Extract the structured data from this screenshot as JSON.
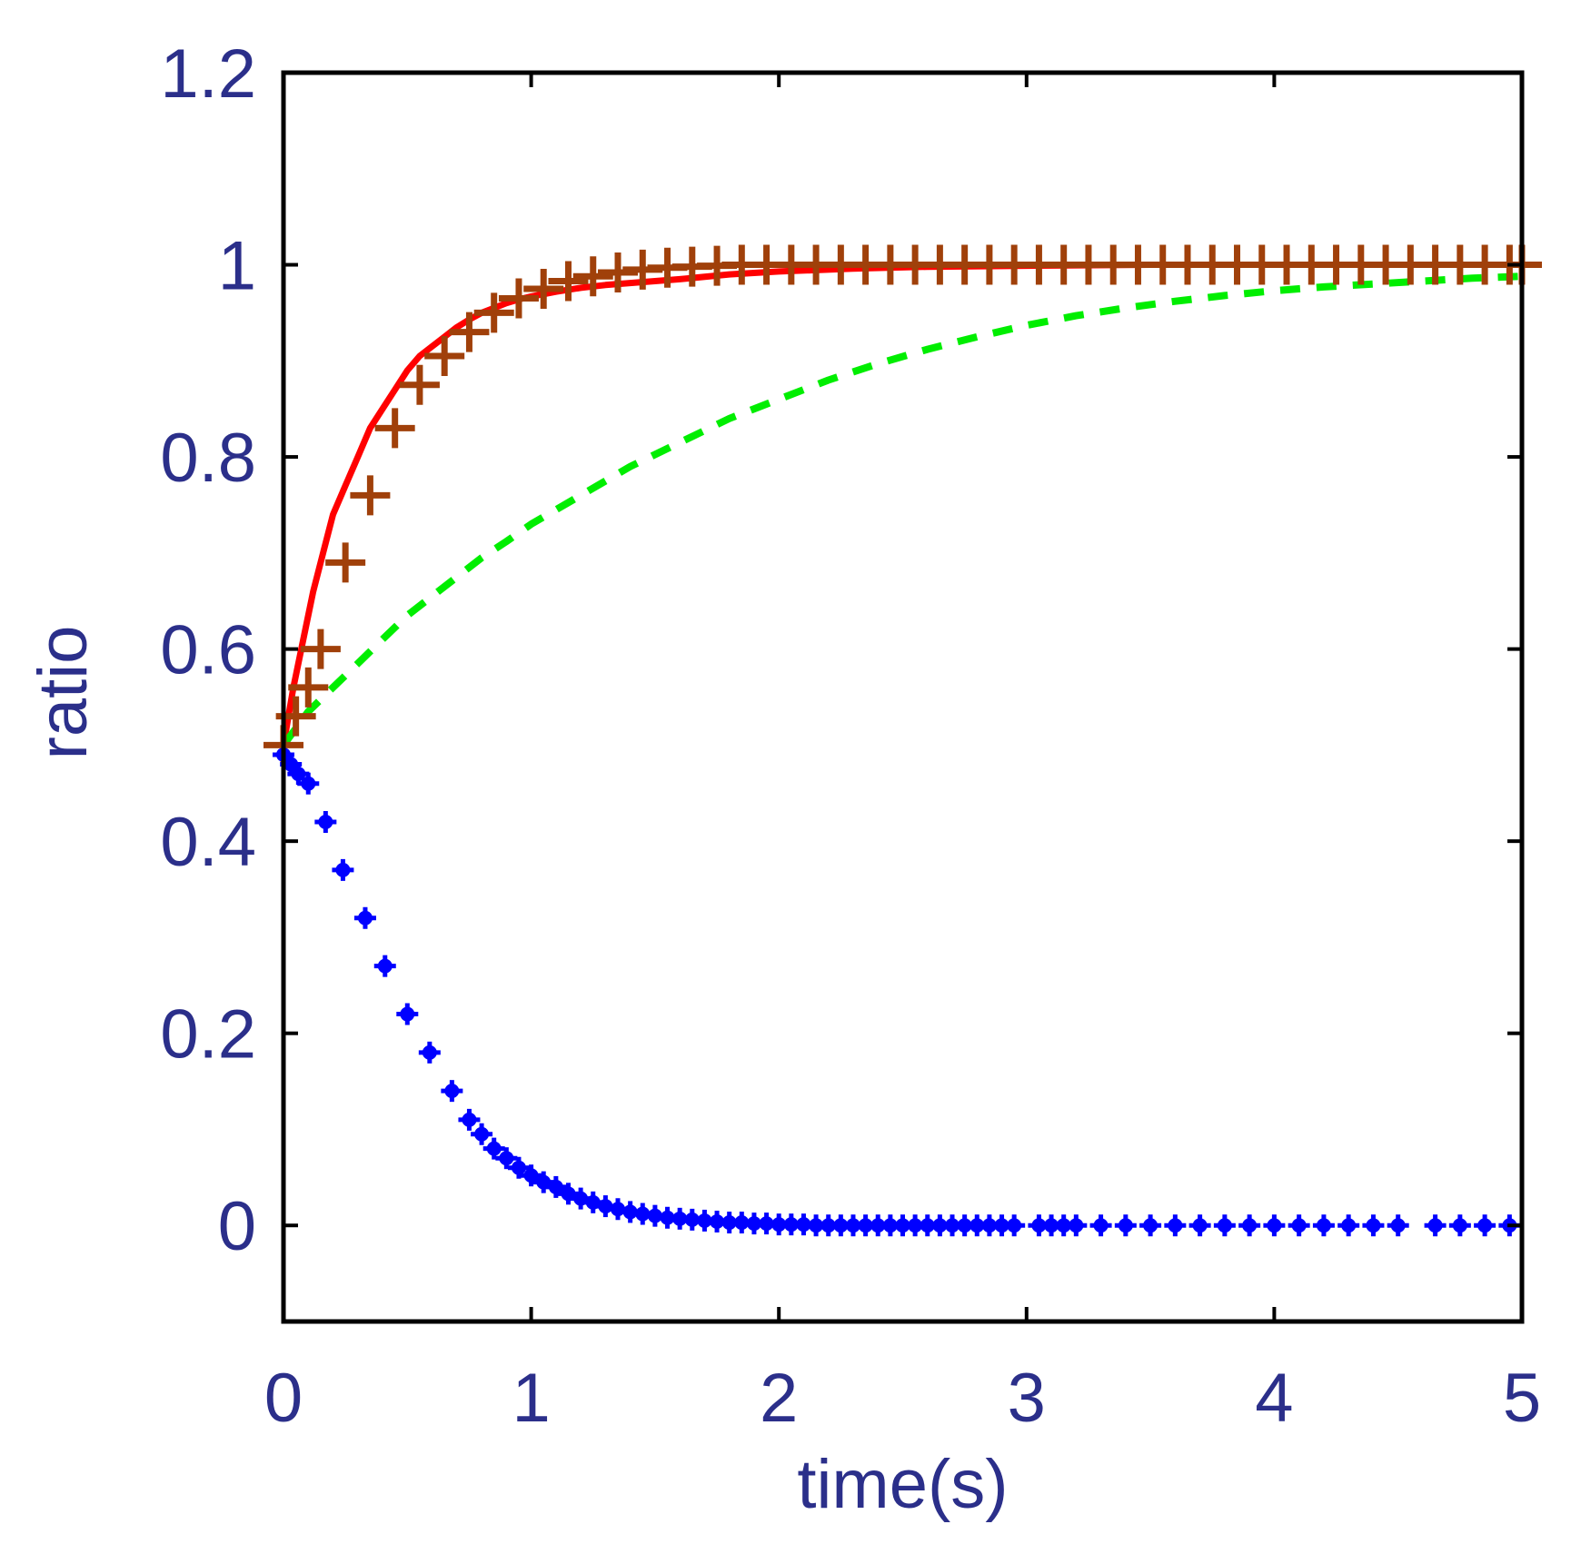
{
  "chart_data": {
    "type": "line",
    "title": "",
    "xlabel": "time(s)",
    "ylabel": "ratio",
    "xlim": [
      0,
      5
    ],
    "ylim": [
      -0.1,
      1.2
    ],
    "x_ticks": [
      0,
      1,
      2,
      3,
      4,
      5
    ],
    "x_tick_labels": [
      "0",
      "1",
      "2",
      "3",
      "4",
      "5"
    ],
    "y_ticks": [
      0,
      0.2,
      0.4,
      0.6,
      0.8,
      1,
      1.2
    ],
    "y_tick_labels": [
      "0",
      "0.2",
      "0.4",
      "0.6",
      "0.8",
      "1",
      "1.2"
    ],
    "grid": false,
    "legend": "none",
    "series": [
      {
        "name": "red-solid",
        "style": "solid",
        "color": "#ff0000",
        "x": [
          0,
          0.04,
          0.08,
          0.12,
          0.16,
          0.2,
          0.25,
          0.3,
          0.35,
          0.4,
          0.45,
          0.5,
          0.55,
          0.6,
          0.65,
          0.7,
          0.75,
          0.8,
          0.85,
          0.9,
          0.95,
          1.0,
          1.1,
          1.2,
          1.3,
          1.4,
          1.5,
          1.6,
          1.8,
          2.0,
          2.3,
          2.6,
          3.0,
          3.5,
          4.0,
          4.5,
          5.0
        ],
        "y": [
          0.5,
          0.56,
          0.61,
          0.66,
          0.7,
          0.74,
          0.77,
          0.8,
          0.83,
          0.85,
          0.87,
          0.89,
          0.905,
          0.915,
          0.925,
          0.935,
          0.943,
          0.95,
          0.955,
          0.96,
          0.964,
          0.967,
          0.972,
          0.976,
          0.979,
          0.981,
          0.983,
          0.985,
          0.99,
          0.993,
          0.996,
          0.998,
          0.999,
          1.0,
          1.0,
          1.0,
          1.0
        ]
      },
      {
        "name": "green-dashed",
        "style": "dashed",
        "color": "#00ee00",
        "x": [
          0,
          0.1,
          0.2,
          0.3,
          0.4,
          0.5,
          0.6,
          0.7,
          0.8,
          0.9,
          1.0,
          1.2,
          1.4,
          1.6,
          1.8,
          2.0,
          2.2,
          2.4,
          2.6,
          2.8,
          3.0,
          3.2,
          3.4,
          3.6,
          3.8,
          4.0,
          4.2,
          4.4,
          4.6,
          4.8,
          5.0
        ],
        "y": [
          0.5,
          0.535,
          0.56,
          0.585,
          0.61,
          0.635,
          0.655,
          0.675,
          0.695,
          0.712,
          0.73,
          0.76,
          0.79,
          0.815,
          0.84,
          0.86,
          0.88,
          0.897,
          0.912,
          0.925,
          0.937,
          0.947,
          0.955,
          0.962,
          0.968,
          0.973,
          0.977,
          0.98,
          0.983,
          0.986,
          0.988
        ]
      },
      {
        "name": "brown-plus",
        "style": "markers-plus",
        "color": "#a0400a",
        "x": [
          0,
          0.05,
          0.1,
          0.15,
          0.25,
          0.35,
          0.45,
          0.55,
          0.65,
          0.75,
          0.85,
          0.95,
          1.05,
          1.15,
          1.25,
          1.35,
          1.45,
          1.55,
          1.65,
          1.75,
          1.85,
          1.95,
          2.05,
          2.15,
          2.25,
          2.35,
          2.45,
          2.55,
          2.65,
          2.75,
          2.85,
          2.95,
          3.05,
          3.15,
          3.25,
          3.35,
          3.45,
          3.55,
          3.65,
          3.75,
          3.85,
          3.95,
          4.05,
          4.15,
          4.25,
          4.35,
          4.45,
          4.55,
          4.65,
          4.75,
          4.85,
          4.95,
          5.0
        ],
        "y": [
          0.5,
          0.53,
          0.56,
          0.6,
          0.69,
          0.76,
          0.83,
          0.875,
          0.905,
          0.93,
          0.95,
          0.965,
          0.975,
          0.983,
          0.988,
          0.992,
          0.995,
          0.997,
          0.998,
          0.999,
          1.0,
          1.0,
          1.0,
          1.0,
          1.0,
          1.0,
          1.0,
          1.0,
          1.0,
          1.0,
          1.0,
          1.0,
          1.0,
          1.0,
          1.0,
          1.0,
          1.0,
          1.0,
          1.0,
          1.0,
          1.0,
          1.0,
          1.0,
          1.0,
          1.0,
          1.0,
          1.0,
          1.0,
          1.0,
          1.0,
          1.0,
          1.0,
          1.0
        ]
      },
      {
        "name": "blue-dots",
        "style": "markers-dot",
        "color": "#0000ff",
        "x": [
          0,
          0.03,
          0.06,
          0.1,
          0.17,
          0.24,
          0.33,
          0.41,
          0.5,
          0.59,
          0.68,
          0.75,
          0.8,
          0.85,
          0.9,
          0.95,
          1.0,
          1.05,
          1.1,
          1.15,
          1.2,
          1.25,
          1.3,
          1.35,
          1.4,
          1.45,
          1.5,
          1.55,
          1.6,
          1.65,
          1.7,
          1.75,
          1.8,
          1.85,
          1.9,
          1.95,
          2.0,
          2.05,
          2.1,
          2.15,
          2.2,
          2.25,
          2.3,
          2.35,
          2.4,
          2.45,
          2.5,
          2.55,
          2.6,
          2.65,
          2.7,
          2.75,
          2.8,
          2.85,
          2.9,
          2.95,
          3.05,
          3.1,
          3.15,
          3.2,
          3.3,
          3.4,
          3.5,
          3.6,
          3.7,
          3.8,
          3.9,
          4.0,
          4.1,
          4.2,
          4.3,
          4.4,
          4.5,
          4.65,
          4.75,
          4.85,
          4.95
        ],
        "y": [
          0.49,
          0.48,
          0.47,
          0.46,
          0.42,
          0.37,
          0.32,
          0.27,
          0.22,
          0.18,
          0.14,
          0.11,
          0.095,
          0.08,
          0.07,
          0.06,
          0.052,
          0.045,
          0.04,
          0.033,
          0.028,
          0.024,
          0.02,
          0.017,
          0.014,
          0.012,
          0.01,
          0.008,
          0.007,
          0.006,
          0.005,
          0.004,
          0.003,
          0.003,
          0.002,
          0.002,
          0.001,
          0.001,
          0.001,
          0.0,
          0.0,
          0.0,
          0.0,
          0.0,
          0.0,
          0.0,
          0.0,
          0.0,
          0.0,
          0.0,
          0.0,
          0.0,
          0.0,
          0.0,
          0.0,
          0.0,
          0.0,
          0.0,
          0.0,
          0.0,
          0.0,
          0.0,
          0.0,
          0.0,
          0.0,
          0.0,
          0.0,
          0.0,
          0.0,
          0.0,
          0.0,
          0.0,
          0.0,
          0.0,
          0.0,
          0.0,
          0.0
        ]
      }
    ]
  }
}
